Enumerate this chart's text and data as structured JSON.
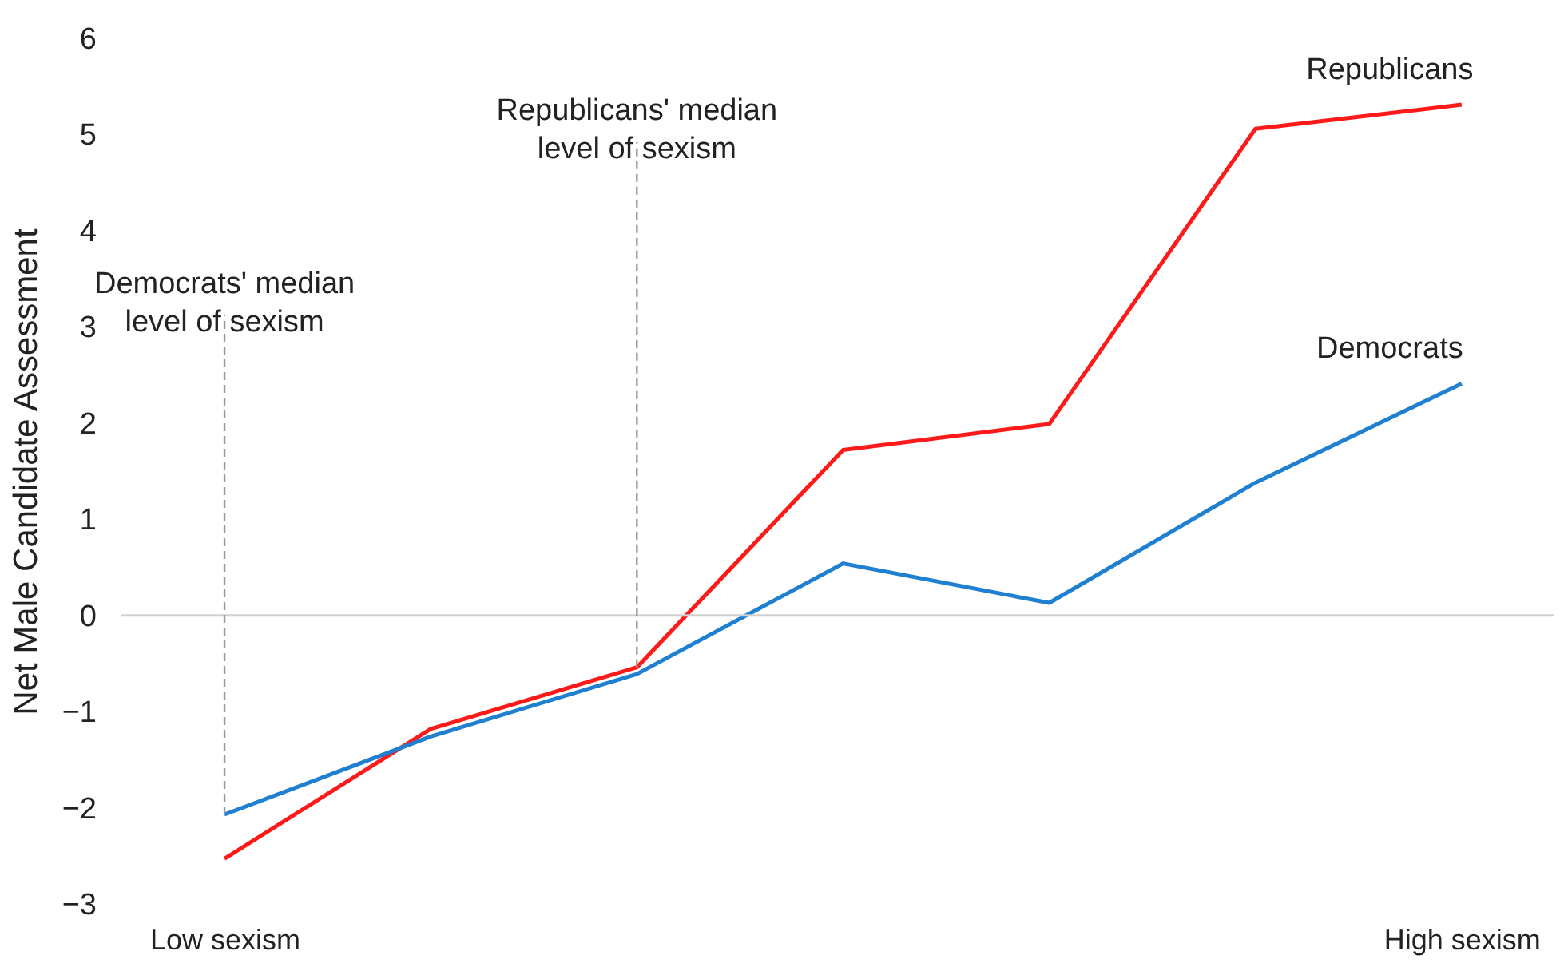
{
  "chart_data": {
    "type": "line",
    "ylabel": "Net Male Candidate Assessment",
    "categories": [
      "Low sexism",
      null,
      null,
      null,
      null,
      null,
      "High sexism"
    ],
    "ylim": [
      -3,
      6
    ],
    "yticks": [
      -3,
      -2,
      -1,
      0,
      1,
      2,
      3,
      4,
      5,
      6
    ],
    "series": [
      {
        "name": "Republicans",
        "color": "#ff1a1a",
        "values": [
          -2.53,
          -1.18,
          -0.54,
          1.72,
          1.99,
          5.06,
          5.31
        ]
      },
      {
        "name": "Democrats",
        "color": "#1f7fd0",
        "values": [
          -2.07,
          -1.26,
          -0.61,
          0.54,
          0.13,
          1.38,
          2.41
        ]
      }
    ],
    "ref_lines": [
      {
        "axis": "y",
        "value": 0,
        "color": "#d0d0d0"
      }
    ],
    "annotations": [
      {
        "text": "Democrats' median\nlevel of sexism",
        "y": -2.07
      },
      {
        "text": "Republicans' median\nlevel of sexism",
        "y": -0.54
      }
    ],
    "grid": false,
    "legend": false,
    "marker": "none",
    "line_style": "solid"
  }
}
